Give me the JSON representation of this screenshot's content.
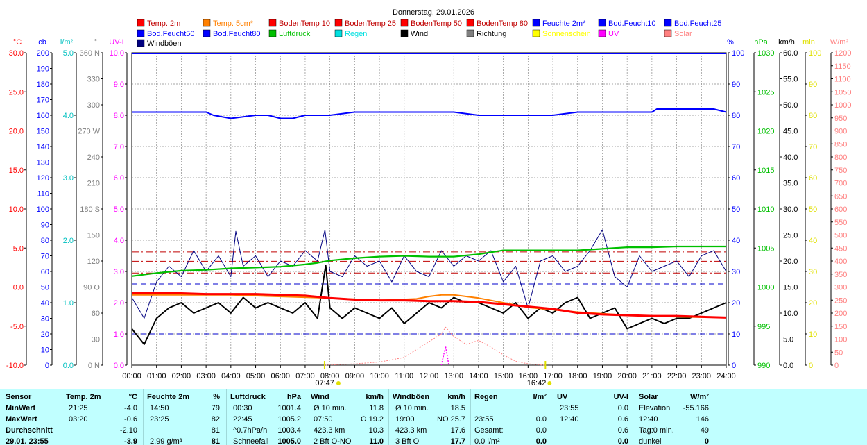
{
  "chart_data": {
    "type": "line",
    "title": "Donnerstag, 29.01.2026",
    "x_ticks": [
      "00:00",
      "01:00",
      "02:00",
      "03:00",
      "04:00",
      "05:00",
      "06:00",
      "07:00",
      "08:00",
      "09:00",
      "10:00",
      "11:00",
      "12:00",
      "13:00",
      "14:00",
      "15:00",
      "16:00",
      "17:00",
      "18:00",
      "19:00",
      "20:00",
      "21:00",
      "22:00",
      "23:00",
      "24:00"
    ],
    "sunrise_label": "07:47",
    "sunset_label": "16:42",
    "legend": [
      {
        "label": "Temp. 2m",
        "color": "#ff0000"
      },
      {
        "label": "Temp. 5cm*",
        "color": "#ff8000"
      },
      {
        "label": "BodenTemp 10",
        "color": "#ff0000"
      },
      {
        "label": "BodenTemp 25",
        "color": "#ff0000"
      },
      {
        "label": "BodenTemp 50",
        "color": "#ff0000"
      },
      {
        "label": "BodenTemp 80",
        "color": "#ff0000"
      },
      {
        "label": "Feuchte 2m*",
        "color": "#0000ff"
      },
      {
        "label": "Bod.Feucht10",
        "color": "#0000ff"
      },
      {
        "label": "Bod.Feucht25",
        "color": "#0000ff"
      },
      {
        "label": "Bod.Feucht50",
        "color": "#0000ff"
      },
      {
        "label": "Bod.Feucht80",
        "color": "#0000ff"
      },
      {
        "label": "Luftdruck",
        "color": "#00c000"
      },
      {
        "label": "Regen",
        "color": "#00e0e0"
      },
      {
        "label": "Wind",
        "color": "#000000"
      },
      {
        "label": "Richtung",
        "color": "#808080"
      },
      {
        "label": "Sonnenschein",
        "color": "#ffff00"
      },
      {
        "label": "UV",
        "color": "#ff00ff"
      },
      {
        "label": "Solar",
        "color": "#ff8080"
      },
      {
        "label": "Windböen",
        "color": "#000080"
      }
    ],
    "axes_left": [
      {
        "unit": "°C",
        "color": "#ff0000",
        "ticks": [
          "30.0",
          "25.0",
          "20.0",
          "15.0",
          "10.0",
          "5.0",
          "0.0",
          "-5.0",
          "-10.0"
        ]
      },
      {
        "unit": "cb",
        "color": "#0000ff",
        "ticks": [
          "200",
          "190",
          "180",
          "170",
          "160",
          "150",
          "140",
          "130",
          "120",
          "110",
          "100",
          "90",
          "80",
          "70",
          "60",
          "50",
          "40",
          "30",
          "20",
          "10",
          "0"
        ]
      },
      {
        "unit": "l/m²",
        "color": "#00c0c0",
        "ticks": [
          "5.0",
          "4.0",
          "3.0",
          "2.0",
          "1.0",
          "0.0"
        ]
      },
      {
        "unit": "°",
        "color": "#808080",
        "ticks": [
          "360 N",
          "330",
          "300",
          "270 W",
          "240",
          "210",
          "180 S",
          "150",
          "120",
          "90 O",
          "60",
          "30",
          "0 N"
        ]
      },
      {
        "unit": "UV-I",
        "color": "#ff00ff",
        "ticks": [
          "10.0",
          "9.0",
          "8.0",
          "7.0",
          "6.0",
          "5.0",
          "4.0",
          "3.0",
          "2.0",
          "1.0",
          "0.0"
        ]
      }
    ],
    "axes_right": [
      {
        "unit": "%",
        "color": "#0000ff",
        "ticks": [
          "100",
          "90",
          "80",
          "70",
          "60",
          "50",
          "40",
          "30",
          "20",
          "10",
          "0"
        ]
      },
      {
        "unit": "hPa",
        "color": "#00c000",
        "ticks": [
          "1030",
          "1025",
          "1020",
          "1015",
          "1010",
          "1005",
          "1000",
          "995",
          "990"
        ]
      },
      {
        "unit": "km/h",
        "color": "#000000",
        "ticks": [
          "60.0",
          "55.0",
          "50.0",
          "45.0",
          "40.0",
          "35.0",
          "30.0",
          "25.0",
          "20.0",
          "15.0",
          "10.0",
          "5.0",
          "0.0"
        ]
      },
      {
        "unit": "min",
        "color": "#e0e000",
        "ticks": [
          "100",
          "90",
          "80",
          "70",
          "60",
          "50",
          "40",
          "30",
          "20",
          "10",
          "0"
        ]
      },
      {
        "unit": "W/m²",
        "color": "#ff8080",
        "ticks": [
          "1200",
          "1150",
          "1100",
          "1050",
          "1000",
          "950",
          "900",
          "850",
          "800",
          "750",
          "700",
          "650",
          "600",
          "550",
          "500",
          "450",
          "400",
          "350",
          "300",
          "250",
          "200",
          "150",
          "100",
          "50",
          "0"
        ]
      }
    ],
    "series": [
      {
        "name": "Feuchte 2m*",
        "unit": "%",
        "color": "#0000ff",
        "x": [
          0,
          2,
          3,
          3.3,
          4,
          5,
          5.5,
          6,
          6.5,
          7,
          8,
          9,
          10,
          11,
          12,
          13,
          14,
          15,
          16,
          17,
          18,
          19,
          20,
          21,
          21.2,
          22,
          23,
          23.5,
          24
        ],
        "values": [
          81,
          81,
          81,
          80,
          79,
          80,
          80,
          79,
          79,
          80,
          80,
          81,
          81,
          81,
          81,
          81,
          80,
          80,
          80,
          80,
          81,
          81,
          81,
          81,
          82,
          82,
          82,
          82,
          81
        ]
      },
      {
        "name": "Luftdruck",
        "unit": "hPa",
        "color": "#00c000",
        "x": [
          0,
          1,
          2,
          3,
          4,
          5,
          6,
          7,
          7.5,
          8,
          9,
          10,
          11,
          12,
          13,
          14,
          15,
          16,
          17,
          18,
          19,
          20,
          21,
          22,
          23,
          24
        ],
        "values": [
          1001.4,
          1001.8,
          1002.1,
          1002.2,
          1002.4,
          1002.5,
          1002.6,
          1002.9,
          1003.1,
          1003.4,
          1003.7,
          1003.9,
          1004.0,
          1003.9,
          1003.9,
          1004.2,
          1004.7,
          1004.7,
          1004.7,
          1004.7,
          1004.9,
          1005.1,
          1005.1,
          1005.2,
          1005.2,
          1005.2
        ]
      },
      {
        "name": "Temp. 2m",
        "unit": "°C",
        "color": "#ff0000",
        "x": [
          0,
          1,
          2,
          3,
          4,
          5,
          6,
          7,
          8,
          9,
          10,
          11,
          12,
          13,
          14,
          15,
          16,
          17,
          18,
          19,
          20,
          21,
          22,
          23,
          24
        ],
        "values": [
          -0.8,
          -0.8,
          -0.8,
          -0.9,
          -0.9,
          -0.9,
          -1.0,
          -1.1,
          -1.4,
          -1.6,
          -1.7,
          -1.7,
          -1.8,
          -1.8,
          -1.9,
          -2.2,
          -2.5,
          -2.8,
          -3.3,
          -3.5,
          -3.6,
          -3.7,
          -3.7,
          -3.8,
          -3.9
        ]
      },
      {
        "name": "Temp. 5cm*",
        "unit": "°C",
        "color": "#ff8000",
        "x": [
          0,
          4,
          8,
          10,
          11.5,
          12,
          12.5,
          13,
          13.5,
          14,
          15,
          16,
          18,
          20,
          22,
          24
        ],
        "values": [
          -1.0,
          -1.0,
          -1.4,
          -1.7,
          -1.5,
          -1.2,
          -1.0,
          -1.0,
          -1.2,
          -1.4,
          -2.0,
          -2.6,
          -3.2,
          -3.6,
          -3.8,
          -3.9
        ]
      },
      {
        "name": "Wind",
        "unit": "km/h",
        "color": "#000000",
        "x": [
          0,
          0.5,
          1,
          1.5,
          2,
          2.5,
          3,
          3.5,
          4,
          4.5,
          5,
          5.5,
          6,
          6.5,
          7,
          7.5,
          7.83,
          8,
          8.5,
          9,
          9.5,
          10,
          10.5,
          11,
          11.5,
          12,
          12.5,
          13,
          13.5,
          14,
          14.5,
          15,
          15.5,
          16,
          16.5,
          17,
          17.5,
          18,
          18.5,
          19,
          19.5,
          20,
          20.5,
          21,
          21.5,
          22,
          22.5,
          23,
          23.5,
          24
        ],
        "values": [
          7,
          4,
          9,
          11,
          12,
          10,
          11,
          12,
          10,
          13,
          11,
          12,
          11,
          10,
          12,
          9,
          19.2,
          11,
          9,
          11,
          10,
          9,
          11,
          8,
          10,
          12,
          11,
          13,
          12,
          12,
          11,
          10,
          12,
          9,
          11,
          10,
          12,
          13,
          9,
          10,
          11,
          7,
          8,
          9,
          8,
          9,
          9,
          10,
          11,
          12
        ]
      },
      {
        "name": "Windböen",
        "unit": "km/h",
        "color": "#000080",
        "x": [
          0,
          0.5,
          1,
          1.5,
          2,
          2.5,
          3,
          3.5,
          4,
          4.2,
          4.5,
          5,
          5.5,
          6,
          6.5,
          7,
          7.5,
          7.8,
          8,
          8.5,
          9,
          9.5,
          10,
          10.5,
          11,
          11.5,
          12,
          12.5,
          13,
          13.5,
          14,
          14.5,
          15,
          15.5,
          16,
          16.5,
          17,
          17.5,
          18,
          18.5,
          19,
          19.5,
          20,
          20.5,
          21,
          21.5,
          22,
          22.5,
          23,
          23.5,
          24
        ],
        "values": [
          13,
          9,
          16,
          19,
          17,
          22,
          18,
          21,
          17,
          25.7,
          19,
          21,
          17,
          20,
          19,
          22,
          20,
          26,
          18,
          17,
          21,
          19,
          20,
          16,
          21,
          18,
          17,
          22,
          19,
          21,
          20,
          22,
          16,
          19,
          11,
          20,
          21,
          18,
          19,
          22,
          26,
          17,
          15,
          21,
          18,
          19,
          20,
          17,
          21,
          22,
          18
        ]
      },
      {
        "name": "Solar",
        "unit": "W/m²",
        "color": "#ff8080",
        "x": [
          7.83,
          9,
          10,
          11,
          11.5,
          12,
          12.5,
          12.67,
          13,
          13.5,
          14,
          14.5,
          15,
          15.5,
          16,
          16.5,
          16.7
        ],
        "values": [
          0,
          5,
          12,
          30,
          60,
          90,
          120,
          146,
          110,
          80,
          95,
          70,
          40,
          15,
          5,
          1,
          0
        ]
      },
      {
        "name": "UV",
        "unit": "UV-I",
        "color": "#ff00ff",
        "x": [
          12.5,
          12.67,
          12.8
        ],
        "values": [
          0,
          0.6,
          0
        ]
      }
    ],
    "thresholds": {
      "BodenTemp_celsius": [
        1.8,
        3.3,
        4.5
      ],
      "Bod_Feucht_cb": [
        20,
        52
      ]
    },
    "xlim": [
      0,
      24
    ],
    "ylim_main": [
      0,
      10
    ]
  },
  "stats": {
    "columns": [
      {
        "header": "Sensor",
        "rows": [
          "MinWert",
          "MaxWert",
          "Durchschnitt",
          "29.01. 23:55"
        ]
      },
      {
        "header": "Temp. 2m",
        "unit": "°C",
        "rows": [
          [
            "21:25",
            "-4.0"
          ],
          [
            "03:20",
            "-0.6"
          ],
          [
            "",
            "-2.10"
          ],
          [
            "",
            "-3.9"
          ]
        ]
      },
      {
        "header": "Feuchte 2m",
        "unit": "%",
        "rows": [
          [
            "14:50",
            "79"
          ],
          [
            "23:25",
            "82"
          ],
          [
            "",
            "81"
          ],
          [
            "2.99 g/m³",
            "81"
          ]
        ]
      },
      {
        "header": "Luftdruck",
        "unit": "hPa",
        "rows": [
          [
            "00:30",
            "1001.4"
          ],
          [
            "22:45",
            "1005.2"
          ],
          [
            "^0.7hPa/h",
            "1003.4"
          ],
          [
            "Schneefall",
            "1005.0"
          ]
        ]
      },
      {
        "header": "Wind",
        "unit": "km/h",
        "rows": [
          [
            "Ø 10 min.",
            "11.8"
          ],
          [
            "07:50",
            "O 19.2"
          ],
          [
            "423.3 km",
            "10.3"
          ],
          [
            "2 Bft O-NO",
            "11.0"
          ]
        ]
      },
      {
        "header": "Windböen",
        "unit": "km/h",
        "rows": [
          [
            "Ø 10 min.",
            "18.5"
          ],
          [
            "19:00",
            "NO 25.7"
          ],
          [
            "423.3 km",
            "17.6"
          ],
          [
            "3 Bft O",
            "17.7"
          ]
        ]
      },
      {
        "header": "Regen",
        "unit": "l/m²",
        "rows": [
          [
            "",
            ""
          ],
          [
            "23:55",
            "0.0"
          ],
          [
            "Gesamt:",
            "0.0"
          ],
          [
            "0.0 l/m²",
            "0.0"
          ]
        ]
      },
      {
        "header": "UV",
        "unit": "UV-I",
        "rows": [
          [
            "23:55",
            "0.0"
          ],
          [
            "12:40",
            "0.6"
          ],
          [
            "",
            "0.6"
          ],
          [
            "",
            "0.0"
          ]
        ]
      },
      {
        "header": "Solar",
        "unit": "W/m²",
        "rows": [
          [
            "Elevation",
            "-55.166"
          ],
          [
            "12:40",
            "146"
          ],
          [
            "Tag:0 min.",
            "49"
          ],
          [
            "dunkel",
            "0"
          ]
        ]
      }
    ]
  }
}
